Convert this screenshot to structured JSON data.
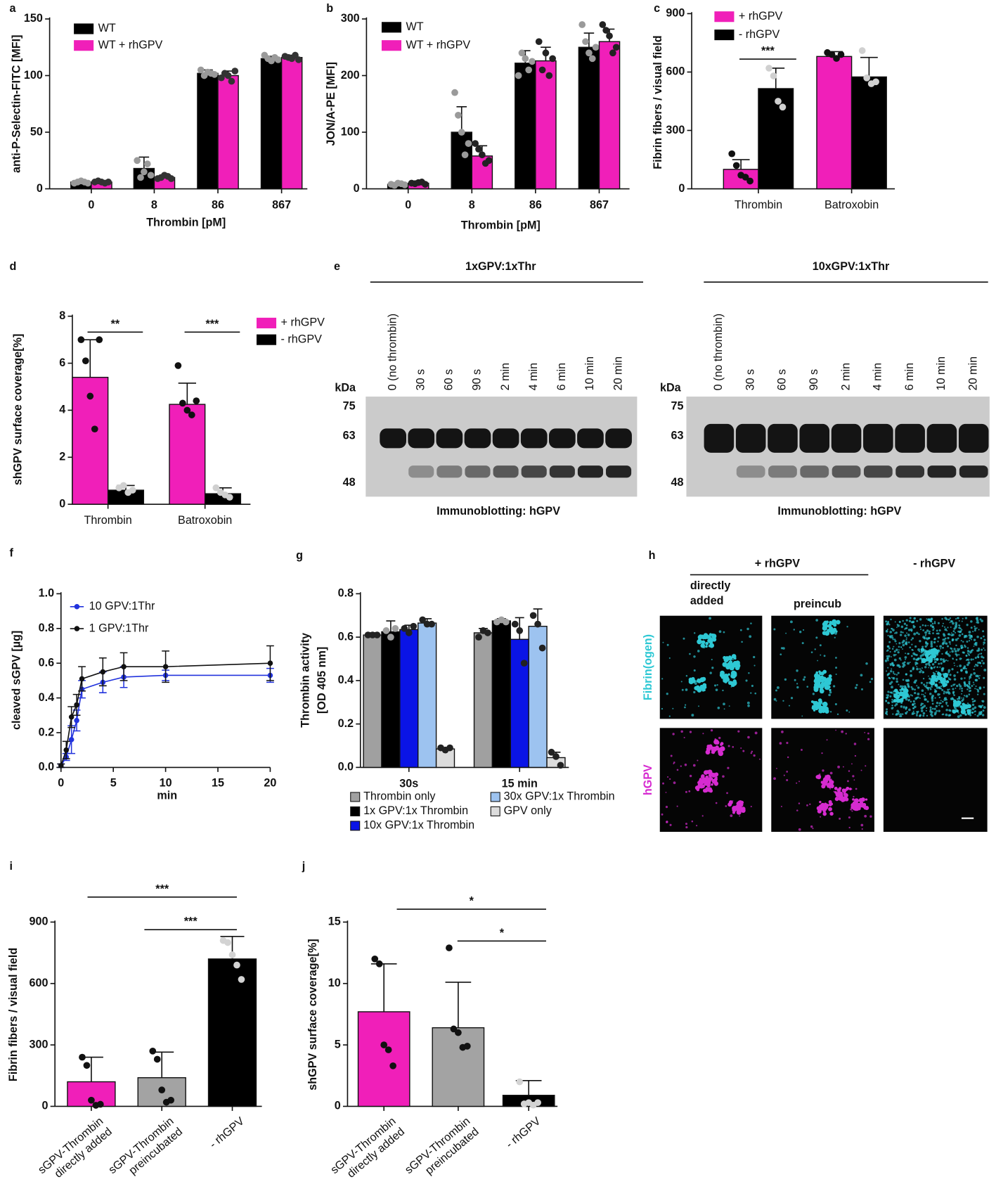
{
  "chart_data": [
    {
      "label": "a",
      "type": "bar",
      "ylabel": "anti-P-Selectin-FITC [MFI]",
      "xlabel": "Thrombin [pM]",
      "categories": [
        "0",
        "8",
        "86",
        "867"
      ],
      "series": [
        {
          "name": "WT",
          "color": "#000000",
          "point_color": "#9a9a9a",
          "values": [
            6,
            18,
            102,
            115
          ],
          "errors": [
            1,
            10,
            3,
            2
          ],
          "points": [
            [
              5,
              6,
              7,
              6,
              5
            ],
            [
              25,
              10,
              15,
              22,
              12
            ],
            [
              105,
              100,
              103,
              102,
              101
            ],
            [
              118,
              115,
              113,
              116,
              114
            ]
          ]
        },
        {
          "name": "WT + rhGPV",
          "color": "#f01fb9",
          "point_color": "#333333",
          "values": [
            6,
            10,
            100,
            116
          ],
          "errors": [
            1,
            2,
            4,
            2
          ],
          "points": [
            [
              6,
              7,
              6,
              5,
              6
            ],
            [
              9,
              10,
              12,
              11,
              9
            ],
            [
              98,
              102,
              100,
              95,
              104
            ],
            [
              117,
              116,
              115,
              118,
              114
            ]
          ]
        }
      ],
      "ylim": [
        0,
        150
      ],
      "yticks": [
        0,
        50,
        100,
        150
      ]
    },
    {
      "label": "b",
      "type": "bar",
      "ylabel": "JON/A-PE [MFI]",
      "xlabel": "Thrombin [pM]",
      "categories": [
        "0",
        "8",
        "86",
        "867"
      ],
      "series": [
        {
          "name": "WT",
          "color": "#000000",
          "point_color": "#9a9a9a",
          "values": [
            8,
            100,
            222,
            250
          ],
          "errors": [
            3,
            45,
            22,
            25
          ],
          "points": [
            [
              8,
              6,
              10,
              9,
              7
            ],
            [
              170,
              130,
              100,
              60,
              80
            ],
            [
              200,
              240,
              230,
              210,
              225
            ],
            [
              290,
              260,
              240,
              230,
              250
            ]
          ]
        },
        {
          "name": "WT + rhGPV",
          "color": "#f01fb9",
          "point_color": "#222222",
          "values": [
            10,
            58,
            226,
            260
          ],
          "errors": [
            3,
            18,
            24,
            22
          ],
          "points": [
            [
              10,
              9,
              11,
              12,
              8
            ],
            [
              80,
              70,
              60,
              45,
              50
            ],
            [
              260,
              210,
              240,
              200,
              230
            ],
            [
              290,
              280,
              270,
              240,
              250
            ]
          ]
        }
      ],
      "ylim": [
        0,
        300
      ],
      "yticks": [
        0,
        100,
        200,
        300
      ]
    },
    {
      "label": "c",
      "type": "bar",
      "ylabel": "Fibrin fibers / visual field",
      "categories": [
        "Thrombin",
        "Batroxobin"
      ],
      "series": [
        {
          "name": "+ rhGPV",
          "color": "#f01fb9",
          "point_color": "#111111",
          "values": [
            100,
            680
          ],
          "errors": [
            50,
            25
          ],
          "points": [
            [
              180,
              120,
              70,
              60,
              40
            ],
            [
              700,
              690,
              670,
              690
            ]
          ]
        },
        {
          "name": "- rhGPV",
          "color": "#000000",
          "point_color": "#d0d0d0",
          "values": [
            515,
            575
          ],
          "errors": [
            105,
            100
          ],
          "points": [
            [
              620,
              580,
              450,
              420
            ],
            [
              710,
              570,
              540,
              550
            ]
          ]
        }
      ],
      "ylim": [
        0,
        900
      ],
      "yticks": [
        0,
        300,
        600,
        900
      ],
      "annotations": [
        "***"
      ]
    },
    {
      "label": "d",
      "type": "bar",
      "ylabel": "shGPV surface coverage[%]",
      "categories": [
        "Thrombin",
        "Batroxobin"
      ],
      "series": [
        {
          "name": "+ rhGPV",
          "color": "#f01fb9",
          "point_color": "#111111",
          "values": [
            5.4,
            4.25
          ],
          "errors": [
            1.6,
            0.9
          ],
          "points": [
            [
              7,
              6.1,
              4.6,
              3.2,
              7
            ],
            [
              5.9,
              4.3,
              4,
              3.8,
              4.4
            ]
          ]
        },
        {
          "name": "- rhGPV",
          "color": "#000000",
          "point_color": "#d0d0d0",
          "values": [
            0.6,
            0.45
          ],
          "errors": [
            0.2,
            0.25
          ],
          "points": [
            [
              0.7,
              0.8,
              0.5,
              0.6
            ],
            [
              0.7,
              0.5,
              0.4,
              0.3
            ]
          ]
        }
      ],
      "ylim": [
        0,
        8
      ],
      "yticks": [
        0,
        2,
        4,
        6,
        8
      ],
      "annotations": [
        "**",
        "***"
      ]
    },
    {
      "label": "f",
      "type": "line",
      "ylabel": "cleaved sGPV [µg]",
      "xlabel": "min",
      "x": [
        0,
        0.5,
        1,
        1.5,
        2,
        4,
        6,
        10,
        20
      ],
      "series": [
        {
          "name": "10 GPV:1Thr",
          "color": "#2233dd",
          "values": [
            0.01,
            0.06,
            0.16,
            0.27,
            0.45,
            0.49,
            0.52,
            0.53,
            0.53
          ],
          "errors": [
            0.01,
            0.02,
            0.08,
            0.06,
            0.05,
            0.06,
            0.06,
            0.03,
            0.04
          ]
        },
        {
          "name": "1 GPV:1Thr",
          "color": "#111111",
          "values": [
            0.01,
            0.1,
            0.29,
            0.36,
            0.51,
            0.55,
            0.58,
            0.58,
            0.6
          ],
          "errors": [
            0.01,
            0.05,
            0.06,
            0.06,
            0.07,
            0.08,
            0.08,
            0.09,
            0.1
          ]
        }
      ],
      "xlim": [
        0,
        20
      ],
      "xticks": [
        0,
        5,
        10,
        15,
        20
      ],
      "ylim": [
        0,
        1
      ],
      "yticks": [
        {
          "value": 0,
          "label": "0.0"
        },
        {
          "value": 0.2,
          "label": "0.2"
        },
        {
          "value": 0.4,
          "label": "0.4"
        },
        {
          "value": 0.6,
          "label": "0.6"
        },
        {
          "value": 0.8,
          "label": "0.8"
        },
        {
          "value": 1,
          "label": "1.0"
        }
      ]
    },
    {
      "label": "g",
      "type": "bar",
      "ylabel": [
        "Thrombin activity",
        "[OD 405 nm]"
      ],
      "categories": [
        "30s",
        "15 min"
      ],
      "series": [
        {
          "name": "Thrombin only",
          "color": "#a0a0a0",
          "point_color": "#222222",
          "values": [
            0.61,
            0.62
          ],
          "errors": [
            0.01,
            0.02
          ],
          "points": [
            [
              0.61,
              0.61,
              0.61
            ],
            [
              0.6,
              0.63,
              0.62
            ]
          ]
        },
        {
          "name": "1x GPV:1x Thrombin",
          "color": "#000000",
          "point_color": "#a0a0a0",
          "values": [
            0.625,
            0.675
          ],
          "errors": [
            0.05,
            0.01
          ],
          "points": [
            [
              0.63,
              0.6,
              0.64
            ],
            [
              0.67,
              0.68,
              0.67
            ]
          ]
        },
        {
          "name": "10x GPV:1x Thrombin",
          "color": "#0a14e6",
          "point_color": "#222222",
          "values": [
            0.635,
            0.59
          ],
          "errors": [
            0.02,
            0.1
          ],
          "points": [
            [
              0.64,
              0.62,
              0.65
            ],
            [
              0.66,
              0.63,
              0.48
            ]
          ]
        },
        {
          "name": "30x GPV:1x Thrombin",
          "color": "#9dc3f0",
          "point_color": "#222222",
          "values": [
            0.665,
            0.65
          ],
          "errors": [
            0.02,
            0.08
          ],
          "points": [
            [
              0.68,
              0.66,
              0.66
            ],
            [
              0.7,
              0.66,
              0.55
            ]
          ]
        },
        {
          "name": "GPV only",
          "color": "#dcdcdc",
          "point_color": "#222222",
          "values": [
            0.085,
            0.045
          ],
          "errors": [
            0.005,
            0.025
          ],
          "points": [
            [
              0.09,
              0.08,
              0.09
            ],
            [
              0.07,
              0.05,
              0.01
            ]
          ]
        }
      ],
      "ylim": [
        0,
        0.8
      ],
      "yticks": [
        {
          "value": 0,
          "label": "0.0"
        },
        {
          "value": 0.2,
          "label": "0.2"
        },
        {
          "value": 0.4,
          "label": "0.4"
        },
        {
          "value": 0.6,
          "label": "0.6"
        },
        {
          "value": 0.8,
          "label": "0.8"
        }
      ]
    },
    {
      "label": "i",
      "type": "bar",
      "ylabel": "Fibrin fibers / visual field",
      "categories": [
        [
          "sGPV-Thrombin",
          "directly added"
        ],
        [
          "sGPV-Thrombin",
          "preincubated"
        ],
        [
          "- rhGPV"
        ]
      ],
      "values": [
        120,
        140,
        720
      ],
      "errors": [
        120,
        125,
        110
      ],
      "colors": [
        "#f01fb9",
        "#a3a3a3",
        "#000000"
      ],
      "point_colors": [
        "#111111",
        "#111111",
        "#d3d3d3"
      ],
      "points": [
        [
          240,
          200,
          30,
          5,
          10
        ],
        [
          270,
          230,
          80,
          20,
          30
        ],
        [
          810,
          800,
          740,
          690,
          620
        ]
      ],
      "ylim": [
        0,
        900
      ],
      "yticks": [
        0,
        300,
        600,
        900
      ],
      "annotations": [
        "***",
        "***"
      ]
    },
    {
      "label": "j",
      "type": "bar",
      "ylabel": "shGPV surface coverage[%]",
      "categories": [
        [
          "sGPV-Thrombin",
          "directly added"
        ],
        [
          "sGPV-Thrombin",
          "preincubated"
        ],
        [
          "- rhGPV"
        ]
      ],
      "values": [
        7.7,
        6.4,
        0.9
      ],
      "errors": [
        3.9,
        3.7,
        1.2
      ],
      "colors": [
        "#f01fb9",
        "#a3a3a3",
        "#000000"
      ],
      "point_colors": [
        "#111111",
        "#111111",
        "#d3d3d3"
      ],
      "points": [
        [
          12,
          11.6,
          5,
          4.6,
          3.3
        ],
        [
          12.9,
          6.3,
          6,
          4.8,
          4.9
        ],
        [
          2,
          0.2,
          0.3,
          0.1,
          0.3
        ]
      ],
      "ylim": [
        0,
        15
      ],
      "yticks": [
        0,
        5,
        10,
        15
      ],
      "annotations": [
        "*",
        "*"
      ]
    }
  ],
  "blots": {
    "label": "e",
    "panels": [
      {
        "title": "1xGPV:1xThr",
        "lanes": [
          "0 (no thrombin)",
          "30 s",
          "60 s",
          "90 s",
          "2 min",
          "4 min",
          "6 min",
          "10 min",
          "20 min"
        ],
        "unit": "kDa",
        "markers": [
          75,
          63,
          48
        ],
        "caption": "Immunoblotting: hGPV"
      },
      {
        "title": "10xGPV:1xThr",
        "lanes": [
          "0 (no thrombin)",
          "30 s",
          "60 s",
          "90 s",
          "2 min",
          "4 min",
          "6 min",
          "10 min",
          "20 min"
        ],
        "unit": "kDa",
        "markers": [
          75,
          63,
          48
        ],
        "caption": "Immunoblotting: hGPV"
      }
    ]
  },
  "images": {
    "label": "h",
    "groups": [
      "+ rhGPV",
      "- rhGPV"
    ],
    "columns": [
      [
        "directly",
        "added"
      ],
      [
        "preincub"
      ]
    ],
    "rows": [
      "Fibrin(ogen)",
      "hGPV"
    ]
  }
}
